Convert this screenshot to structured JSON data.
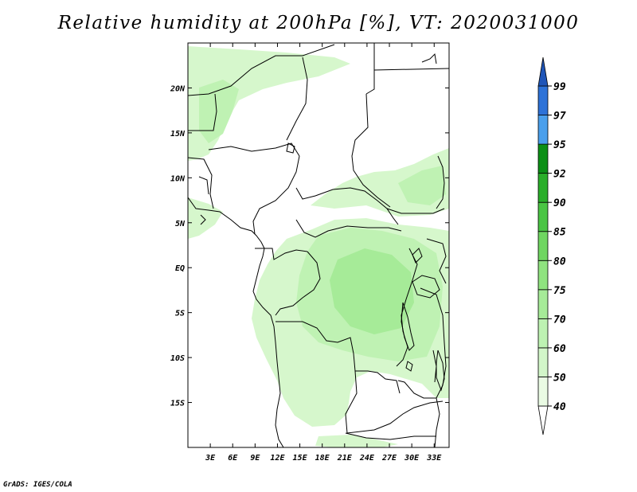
{
  "title": "Relative humidity at 200hPa [%], VT: 2020031000",
  "credit": "GrADS: IGES/COLA",
  "map": {
    "lat_labels": [
      "20N",
      "15N",
      "10N",
      "5N",
      "EQ",
      "5S",
      "10S",
      "15S"
    ],
    "lat_values": [
      20,
      15,
      10,
      5,
      0,
      -5,
      -10,
      -15
    ],
    "lon_labels": [
      "3E",
      "6E",
      "9E",
      "12E",
      "15E",
      "18E",
      "21E",
      "24E",
      "27E",
      "30E",
      "33E"
    ],
    "lon_values": [
      3,
      6,
      9,
      12,
      15,
      18,
      21,
      24,
      27,
      30,
      33
    ],
    "lon_range": [
      0,
      35
    ],
    "lat_range": [
      -20,
      25
    ]
  },
  "colorbar": {
    "levels": [
      "40",
      "50",
      "60",
      "70",
      "75",
      "80",
      "85",
      "90",
      "92",
      "95",
      "97",
      "99"
    ],
    "colors": [
      "#ffffff",
      "#eafbe4",
      "#d2f6c9",
      "#bdf2b2",
      "#a6eb98",
      "#8fe37f",
      "#6fd661",
      "#4ac544",
      "#2aae2a",
      "#0b8f15",
      "#4a9fec",
      "#2d72d8",
      "#1f55b8"
    ]
  }
}
